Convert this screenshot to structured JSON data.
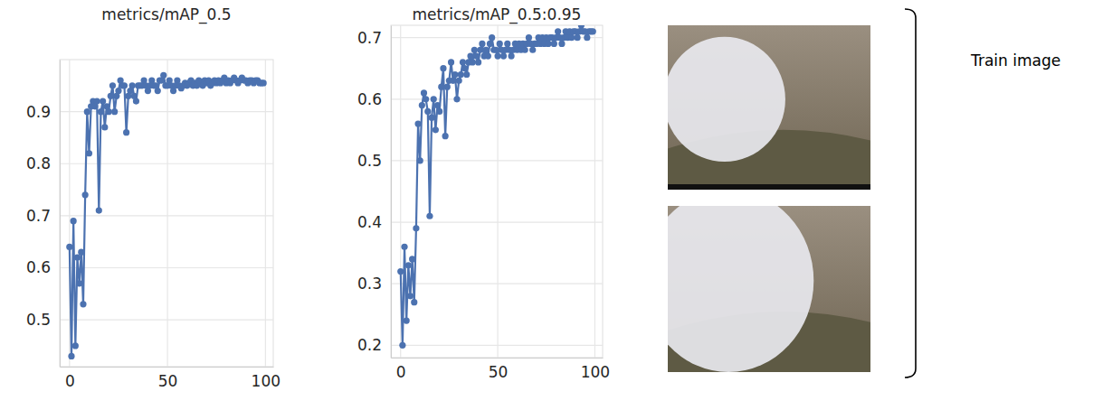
{
  "chart_data": [
    {
      "type": "line",
      "title": "metrics/mAP_0.5",
      "x": [
        0,
        1,
        2,
        3,
        4,
        5,
        6,
        7,
        8,
        9,
        10,
        11,
        12,
        13,
        14,
        15,
        16,
        17,
        18,
        19,
        20,
        21,
        22,
        23,
        24,
        25,
        26,
        27,
        28,
        29,
        30,
        31,
        32,
        33,
        34,
        35,
        36,
        37,
        38,
        39,
        40,
        41,
        42,
        43,
        44,
        45,
        46,
        47,
        48,
        49,
        50,
        51,
        52,
        53,
        54,
        55,
        56,
        57,
        58,
        59,
        60,
        61,
        62,
        63,
        64,
        65,
        66,
        67,
        68,
        69,
        70,
        71,
        72,
        73,
        74,
        75,
        76,
        77,
        78,
        79,
        80,
        81,
        82,
        83,
        84,
        85,
        86,
        87,
        88,
        89,
        90,
        91,
        92,
        93,
        94,
        95,
        96,
        97,
        98,
        99
      ],
      "series": [
        {
          "color": "#4c72b0",
          "marker": "circle",
          "values": [
            0.64,
            0.43,
            0.69,
            0.45,
            0.62,
            0.57,
            0.63,
            0.53,
            0.74,
            0.9,
            0.82,
            0.91,
            0.92,
            0.91,
            0.92,
            0.71,
            0.9,
            0.92,
            0.87,
            0.91,
            0.9,
            0.93,
            0.95,
            0.9,
            0.93,
            0.94,
            0.96,
            0.95,
            0.95,
            0.86,
            0.93,
            0.94,
            0.95,
            0.93,
            0.92,
            0.95,
            0.95,
            0.95,
            0.96,
            0.95,
            0.94,
            0.95,
            0.96,
            0.95,
            0.95,
            0.94,
            0.96,
            0.96,
            0.97,
            0.95,
            0.95,
            0.96,
            0.95,
            0.94,
            0.95,
            0.96,
            0.95,
            0.945,
            0.95,
            0.955,
            0.95,
            0.955,
            0.96,
            0.95,
            0.955,
            0.95,
            0.96,
            0.955,
            0.95,
            0.96,
            0.955,
            0.96,
            0.95,
            0.955,
            0.96,
            0.955,
            0.96,
            0.955,
            0.96,
            0.965,
            0.955,
            0.96,
            0.955,
            0.96,
            0.965,
            0.96,
            0.955,
            0.96,
            0.965,
            0.96,
            0.96,
            0.955,
            0.96,
            0.96,
            0.955,
            0.96,
            0.96,
            0.955,
            0.955,
            0.955
          ]
        }
      ],
      "xlim": [
        -5,
        104
      ],
      "xticks": [
        0,
        50,
        100
      ],
      "ylim": [
        0.41,
        1.0
      ],
      "yticks": [
        0.5,
        0.6,
        0.7,
        0.8,
        0.9
      ],
      "grid": true
    },
    {
      "type": "line",
      "title": "metrics/mAP_0.5:0.95",
      "x": [
        0,
        1,
        2,
        3,
        4,
        5,
        6,
        7,
        8,
        9,
        10,
        11,
        12,
        13,
        14,
        15,
        16,
        17,
        18,
        19,
        20,
        21,
        22,
        23,
        24,
        25,
        26,
        27,
        28,
        29,
        30,
        31,
        32,
        33,
        34,
        35,
        36,
        37,
        38,
        39,
        40,
        41,
        42,
        43,
        44,
        45,
        46,
        47,
        48,
        49,
        50,
        51,
        52,
        53,
        54,
        55,
        56,
        57,
        58,
        59,
        60,
        61,
        62,
        63,
        64,
        65,
        66,
        67,
        68,
        69,
        70,
        71,
        72,
        73,
        74,
        75,
        76,
        77,
        78,
        79,
        80,
        81,
        82,
        83,
        84,
        85,
        86,
        87,
        88,
        89,
        90,
        91,
        92,
        93,
        94,
        95,
        96,
        97,
        98,
        99
      ],
      "series": [
        {
          "color": "#4c72b0",
          "marker": "circle",
          "values": [
            0.32,
            0.2,
            0.36,
            0.24,
            0.33,
            0.28,
            0.34,
            0.27,
            0.39,
            0.56,
            0.5,
            0.59,
            0.61,
            0.6,
            0.58,
            0.41,
            0.57,
            0.6,
            0.55,
            0.59,
            0.58,
            0.62,
            0.65,
            0.54,
            0.62,
            0.63,
            0.66,
            0.63,
            0.64,
            0.6,
            0.63,
            0.64,
            0.66,
            0.65,
            0.64,
            0.66,
            0.67,
            0.66,
            0.68,
            0.67,
            0.66,
            0.68,
            0.69,
            0.67,
            0.68,
            0.67,
            0.69,
            0.7,
            0.68,
            0.68,
            0.67,
            0.69,
            0.68,
            0.67,
            0.68,
            0.69,
            0.68,
            0.67,
            0.68,
            0.69,
            0.68,
            0.69,
            0.68,
            0.69,
            0.68,
            0.69,
            0.7,
            0.69,
            0.68,
            0.69,
            0.69,
            0.7,
            0.69,
            0.7,
            0.69,
            0.7,
            0.69,
            0.7,
            0.7,
            0.69,
            0.7,
            0.71,
            0.7,
            0.69,
            0.7,
            0.71,
            0.7,
            0.71,
            0.7,
            0.71,
            0.71,
            0.7,
            0.71,
            0.72,
            0.71,
            0.71,
            0.7,
            0.71,
            0.71,
            0.71
          ]
        }
      ],
      "xlim": [
        -5,
        104
      ],
      "xticks": [
        0,
        50,
        100
      ],
      "ylim": [
        0.18,
        0.72
      ],
      "yticks": [
        0.2,
        0.3,
        0.4,
        0.5,
        0.6,
        0.7
      ],
      "grid": true
    }
  ],
  "images": {
    "label": "Train image"
  }
}
